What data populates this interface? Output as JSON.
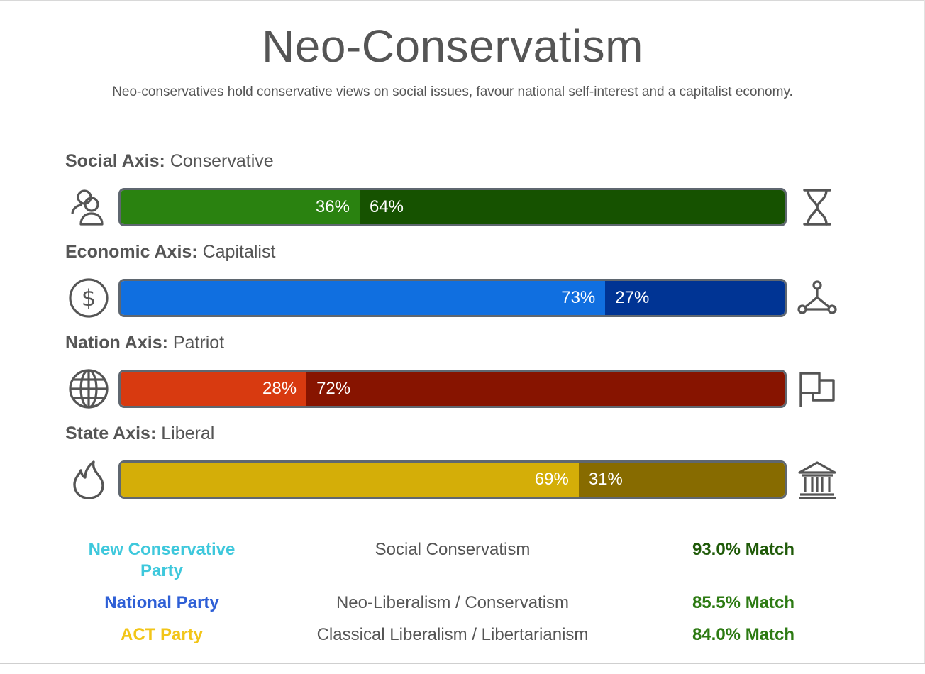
{
  "title": "Neo-Conservatism",
  "subtitle": "Neo-conservatives hold conservative views on social issues, favour national self-interest and a capitalist economy.",
  "chart_data": {
    "type": "bar",
    "orientation": "horizontal-stacked",
    "axes": [
      {
        "key": "Social Axis:",
        "value": "Conservative",
        "left_icon": "people-icon",
        "right_icon": "hourglass-icon",
        "left_pct": 36,
        "right_pct": 64,
        "left_label": "36%",
        "right_label": "64%",
        "left_color": "#2a8210",
        "right_color": "#165200"
      },
      {
        "key": "Economic Axis:",
        "value": "Capitalist",
        "left_icon": "dollar-icon",
        "right_icon": "network-icon",
        "left_pct": 73,
        "right_pct": 27,
        "left_label": "73%",
        "right_label": "27%",
        "left_color": "#106fe0",
        "right_color": "#003494"
      },
      {
        "key": "Nation Axis:",
        "value": "Patriot",
        "left_icon": "globe-icon",
        "right_icon": "flag-icon",
        "left_pct": 28,
        "right_pct": 72,
        "left_label": "28%",
        "right_label": "72%",
        "left_color": "#d83a10",
        "right_color": "#871400"
      },
      {
        "key": "State Axis:",
        "value": "Liberal",
        "left_icon": "flame-icon",
        "right_icon": "government-building-icon",
        "left_pct": 69,
        "right_pct": 31,
        "left_label": "69%",
        "right_label": "31%",
        "left_color": "#d4ae08",
        "right_color": "#876b00"
      }
    ]
  },
  "parties": [
    {
      "name": "New Conservative Party",
      "ideology": "Social Conservatism",
      "match": "93.0% Match",
      "name_color": "#3ec8dc",
      "match_color": "#1f5a08"
    },
    {
      "name": "National Party",
      "ideology": "Neo-Liberalism / Conservatism",
      "match": "85.5% Match",
      "name_color": "#2e5fd6",
      "match_color": "#2c7a12"
    },
    {
      "name": "ACT Party",
      "ideology": "Classical Liberalism / Libertarianism",
      "match": "84.0% Match",
      "name_color": "#f2c518",
      "match_color": "#2c7a12"
    }
  ]
}
